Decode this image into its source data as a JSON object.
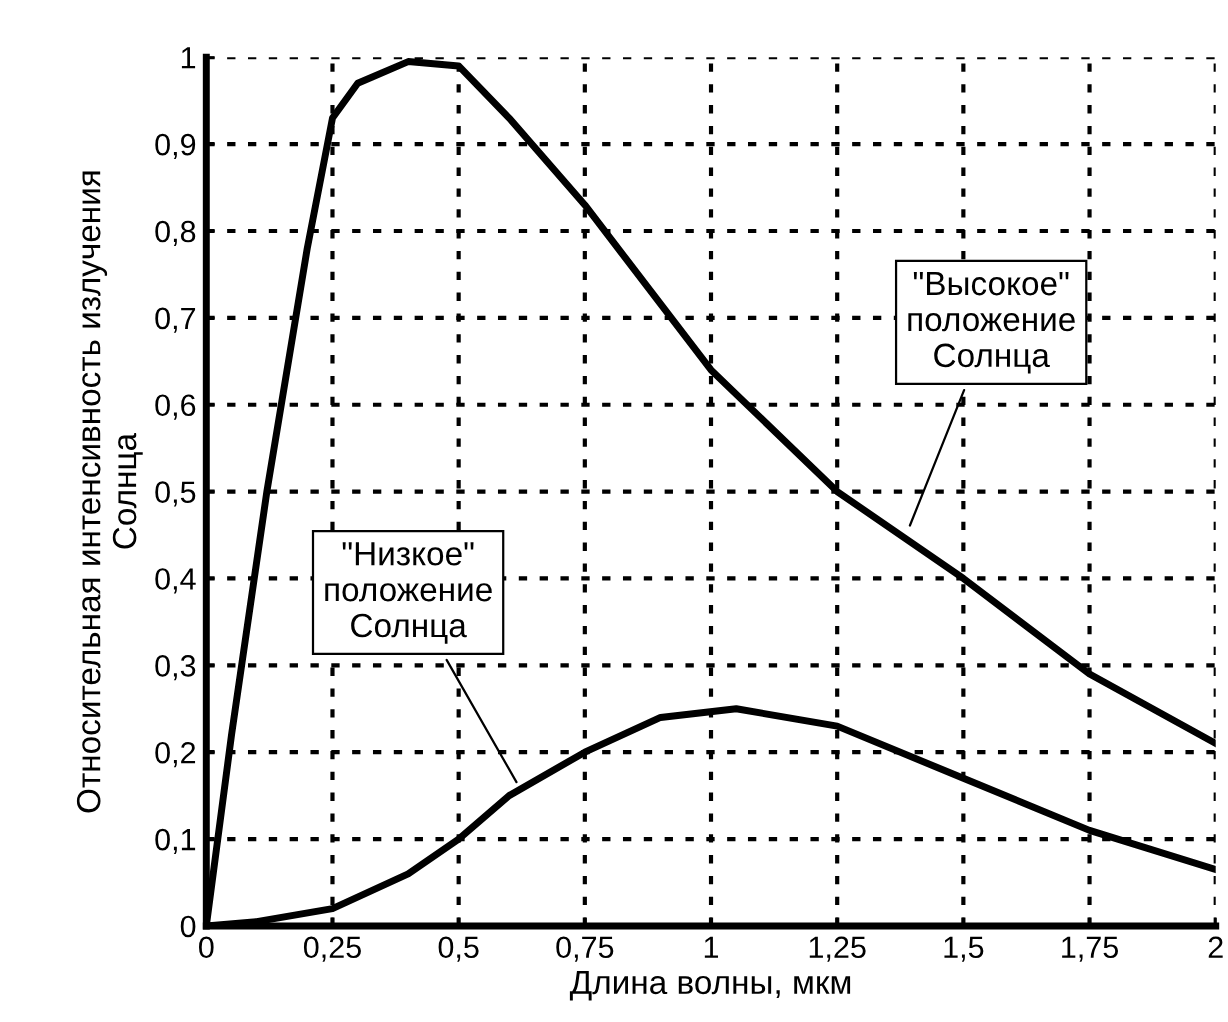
{
  "chart_data": {
    "type": "line",
    "xlabel": "Длина волны, мкм",
    "ylabel": "Относительная интенсивность излучения\nСолнца",
    "series": [
      {
        "color": "#000000",
        "x": [
          0,
          0.05,
          0.12,
          0.2,
          0.25,
          0.3,
          0.4,
          0.5,
          0.6,
          0.75,
          1,
          1.25,
          1.5,
          1.75,
          2
        ],
        "values": [
          0,
          0.22,
          0.5,
          0.78,
          0.93,
          0.97,
          0.995,
          0.99,
          0.93,
          0.83,
          0.64,
          0.5,
          0.4,
          0.29,
          0.21
        ]
      },
      {
        "color": "#000000",
        "x": [
          0,
          0.1,
          0.25,
          0.4,
          0.5,
          0.6,
          0.75,
          0.9,
          1.05,
          1.25,
          1.5,
          1.75,
          2
        ],
        "values": [
          0,
          0.005,
          0.02,
          0.06,
          0.1,
          0.15,
          0.2,
          0.24,
          0.25,
          0.23,
          0.17,
          0.11,
          0.065
        ]
      }
    ],
    "annotations": [
      {
        "text": "\"Высокое\"\nположение\nСолнца",
        "x": 1.39,
        "y": 0.455
      },
      {
        "text": "\"Низкое\"\nположение\nСолнца",
        "x": 0.62,
        "y": 0.16
      }
    ],
    "xlim": [
      0,
      2
    ],
    "ylim": [
      0,
      1
    ],
    "xticks": [
      0,
      {
        "value": 0.25,
        "label": "0,25"
      },
      {
        "value": 0.5,
        "label": "0,5"
      },
      {
        "value": 0.75,
        "label": "0,75"
      },
      1,
      {
        "value": 1.25,
        "label": "1,25"
      },
      {
        "value": 1.5,
        "label": "1,5"
      },
      {
        "value": 1.75,
        "label": "1,75"
      },
      2
    ],
    "yticks": [
      0,
      {
        "value": 0.1,
        "label": "0,1"
      },
      {
        "value": 0.2,
        "label": "0,2"
      },
      {
        "value": 0.3,
        "label": "0,3"
      },
      {
        "value": 0.4,
        "label": "0,4"
      },
      {
        "value": 0.5,
        "label": "0,5"
      },
      {
        "value": 0.6,
        "label": "0,6"
      },
      {
        "value": 0.7,
        "label": "0,7"
      },
      {
        "value": 0.8,
        "label": "0,8"
      },
      {
        "value": 0.9,
        "label": "0,9"
      },
      1
    ],
    "grid": true,
    "line_style": "solid",
    "marker": "none"
  }
}
